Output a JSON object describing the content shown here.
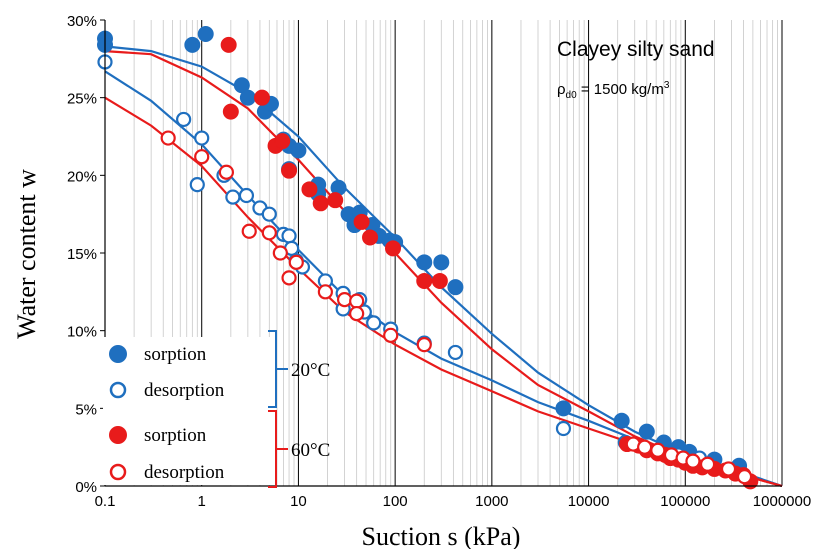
{
  "chart_data": {
    "type": "scatter",
    "xscale": "log",
    "xlim": [
      0.1,
      1000000
    ],
    "ylim": [
      0,
      30
    ],
    "x_ticks": [
      "0.1",
      "1",
      "10",
      "100",
      "1000",
      "10000",
      "100000",
      "1000000"
    ],
    "y_ticks": [
      "0%",
      "5%",
      "10%",
      "15%",
      "20%",
      "25%",
      "30%"
    ],
    "xlabel": "Suction s (kPa)",
    "ylabel": "Water content w",
    "annotation": {
      "line1": "Clayey silty sand",
      "rho": "ρ",
      "rho_sub": "d0",
      "rho_rest": " = 1500 kg/m",
      "rho_sup": "3"
    },
    "grid": "vertical major and minor",
    "legend_groups": [
      {
        "label": "20°C",
        "color": "#1f6fbf",
        "entries": [
          "sorption",
          "desorption"
        ]
      },
      {
        "label": "60°C",
        "color": "#e81b1b",
        "entries": [
          "sorption",
          "desorption"
        ]
      }
    ],
    "series": [
      {
        "name": "sorption",
        "group": "20°C",
        "color": "#1f6fbf",
        "filled": true,
        "points": [
          [
            0.1,
            28.8
          ],
          [
            0.1,
            28.4
          ],
          [
            0.8,
            28.4
          ],
          [
            1.1,
            29.1
          ],
          [
            2.6,
            25.8
          ],
          [
            3,
            25
          ],
          [
            4.5,
            24.1
          ],
          [
            5.2,
            24.6
          ],
          [
            7,
            22.3
          ],
          [
            8,
            21.9
          ],
          [
            10,
            21.6
          ],
          [
            8,
            20.4
          ],
          [
            16,
            19.4
          ],
          [
            16,
            18.8
          ],
          [
            26,
            19.2
          ],
          [
            33,
            17.5
          ],
          [
            43,
            17.6
          ],
          [
            38,
            16.8
          ],
          [
            58,
            16.8
          ],
          [
            68,
            16.1
          ],
          [
            88,
            15.8
          ],
          [
            100,
            15.7
          ],
          [
            200,
            14.4
          ],
          [
            300,
            14.4
          ],
          [
            420,
            12.8
          ],
          [
            5500,
            5
          ],
          [
            22000,
            4.2
          ],
          [
            40000,
            3.5
          ],
          [
            60000,
            2.8
          ],
          [
            85000,
            2.5
          ],
          [
            110000,
            2.2
          ],
          [
            200000,
            1.7
          ],
          [
            360000,
            1.3
          ]
        ]
      },
      {
        "name": "desorption",
        "group": "20°C",
        "color": "#1f6fbf",
        "filled": false,
        "points": [
          [
            0.1,
            27.3
          ],
          [
            0.65,
            23.6
          ],
          [
            1,
            22.4
          ],
          [
            0.9,
            19.4
          ],
          [
            1.7,
            20
          ],
          [
            2.1,
            18.6
          ],
          [
            2.9,
            18.7
          ],
          [
            4,
            17.9
          ],
          [
            5,
            17.5
          ],
          [
            7,
            16.2
          ],
          [
            8,
            16.1
          ],
          [
            8.5,
            15.3
          ],
          [
            9.5,
            14.5
          ],
          [
            11,
            14.1
          ],
          [
            19,
            13.2
          ],
          [
            29,
            12.4
          ],
          [
            29,
            11.4
          ],
          [
            43,
            12
          ],
          [
            48,
            11.2
          ],
          [
            60,
            10.5
          ],
          [
            90,
            10.1
          ],
          [
            200,
            9.2
          ],
          [
            420,
            8.6
          ],
          [
            5500,
            3.7
          ],
          [
            24000,
            2.8
          ],
          [
            85000,
            2
          ],
          [
            140000,
            1.8
          ]
        ]
      },
      {
        "name": "sorption",
        "group": "60°C",
        "color": "#e81b1b",
        "filled": true,
        "points": [
          [
            1.9,
            28.4
          ],
          [
            2,
            24.1
          ],
          [
            4.2,
            25
          ],
          [
            5.8,
            21.9
          ],
          [
            6.8,
            22.2
          ],
          [
            8,
            20.3
          ],
          [
            13,
            19.1
          ],
          [
            17,
            18.2
          ],
          [
            24,
            18.4
          ],
          [
            45,
            17
          ],
          [
            55,
            16
          ],
          [
            95,
            15.3
          ],
          [
            200,
            13.2
          ],
          [
            290,
            13.2
          ],
          [
            25000,
            2.7
          ],
          [
            33000,
            2.6
          ],
          [
            40000,
            2.3
          ],
          [
            52000,
            2.1
          ],
          [
            62000,
            2
          ],
          [
            70000,
            1.8
          ],
          [
            85000,
            1.7
          ],
          [
            100000,
            1.5
          ],
          [
            120000,
            1.3
          ],
          [
            150000,
            1.2
          ],
          [
            200000,
            1.1
          ],
          [
            260000,
            1
          ],
          [
            330000,
            0.8
          ],
          [
            400000,
            0.7
          ],
          [
            470000,
            0.3
          ]
        ]
      },
      {
        "name": "desorption",
        "group": "60°C",
        "color": "#e81b1b",
        "filled": false,
        "points": [
          [
            0.45,
            22.4
          ],
          [
            1,
            21.2
          ],
          [
            1.8,
            20.2
          ],
          [
            3.1,
            16.4
          ],
          [
            5,
            16.3
          ],
          [
            6.5,
            15
          ],
          [
            8,
            13.4
          ],
          [
            9.5,
            14.4
          ],
          [
            19,
            12.5
          ],
          [
            30,
            12
          ],
          [
            40,
            11.9
          ],
          [
            40,
            11.1
          ],
          [
            90,
            9.7
          ],
          [
            200,
            9.1
          ],
          [
            29000,
            2.7
          ],
          [
            38000,
            2.5
          ],
          [
            52000,
            2.3
          ],
          [
            72000,
            2
          ],
          [
            95000,
            1.8
          ],
          [
            120000,
            1.6
          ],
          [
            170000,
            1.4
          ],
          [
            280000,
            1.1
          ],
          [
            410000,
            0.6
          ]
        ]
      },
      {
        "name": "sorption",
        "group": "20°C",
        "color": "#1f6fbf",
        "line": true,
        "points": [
          [
            0.1,
            28.3
          ],
          [
            0.3,
            28
          ],
          [
            1,
            27
          ],
          [
            3,
            25.3
          ],
          [
            10,
            22.5
          ],
          [
            30,
            19.2
          ],
          [
            100,
            16
          ],
          [
            300,
            12.8
          ],
          [
            1000,
            9.8
          ],
          [
            3000,
            7.3
          ],
          [
            10000,
            5.2
          ],
          [
            30000,
            3.5
          ],
          [
            100000,
            2
          ],
          [
            300000,
            1.1
          ],
          [
            1000000,
            0
          ]
        ]
      },
      {
        "name": "desorption",
        "group": "20°C",
        "color": "#1f6fbf",
        "line": true,
        "points": [
          [
            0.1,
            26.7
          ],
          [
            0.3,
            24.8
          ],
          [
            1,
            22
          ],
          [
            3,
            18.7
          ],
          [
            10,
            15.2
          ],
          [
            30,
            12.2
          ],
          [
            100,
            9.9
          ],
          [
            300,
            8.2
          ],
          [
            1000,
            6.8
          ],
          [
            3000,
            5.4
          ],
          [
            10000,
            4.2
          ],
          [
            30000,
            3
          ],
          [
            100000,
            1.9
          ],
          [
            300000,
            1
          ],
          [
            1000000,
            0
          ]
        ]
      },
      {
        "name": "sorption",
        "group": "60°C",
        "color": "#e81b1b",
        "line": true,
        "points": [
          [
            0.1,
            28
          ],
          [
            0.3,
            27.8
          ],
          [
            1,
            26.3
          ],
          [
            3,
            24.3
          ],
          [
            10,
            21
          ],
          [
            30,
            17.7
          ],
          [
            100,
            15
          ],
          [
            300,
            11.8
          ],
          [
            1000,
            8.8
          ],
          [
            3000,
            6.5
          ],
          [
            10000,
            4.8
          ],
          [
            30000,
            3.2
          ],
          [
            100000,
            1.8
          ],
          [
            300000,
            0.9
          ],
          [
            1000000,
            0
          ]
        ]
      },
      {
        "name": "desorption",
        "group": "60°C",
        "color": "#e81b1b",
        "line": true,
        "points": [
          [
            0.1,
            25
          ],
          [
            0.3,
            23.2
          ],
          [
            1,
            20.6
          ],
          [
            3,
            17.3
          ],
          [
            10,
            14
          ],
          [
            30,
            11.2
          ],
          [
            100,
            9.1
          ],
          [
            300,
            7.5
          ],
          [
            1000,
            6.1
          ],
          [
            3000,
            4.8
          ],
          [
            10000,
            3.7
          ],
          [
            30000,
            2.7
          ],
          [
            100000,
            1.7
          ],
          [
            300000,
            0.9
          ],
          [
            1000000,
            0
          ]
        ]
      }
    ]
  }
}
